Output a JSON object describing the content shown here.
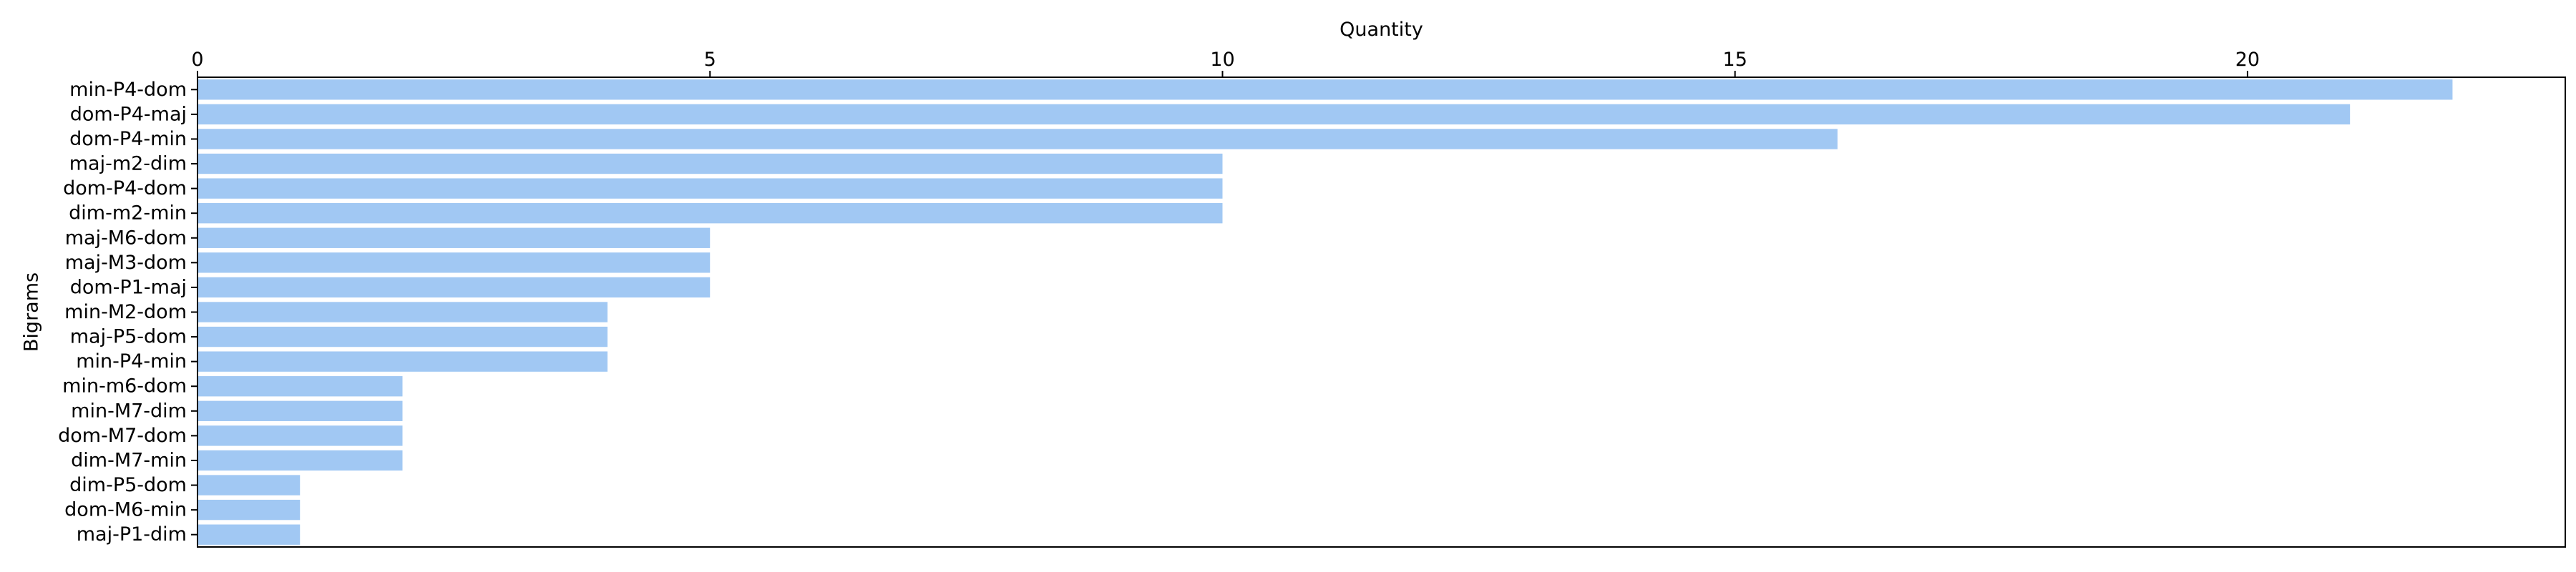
{
  "chart_data": {
    "type": "bar",
    "orientation": "horizontal",
    "title": "",
    "xlabel": "Quantity",
    "ylabel": "Bigrams",
    "x_axis_position": "top",
    "xlim": [
      0,
      23.1
    ],
    "xticks": [
      0,
      5,
      10,
      15,
      20
    ],
    "grid": false,
    "legend": "none",
    "bar_color": "#a1c8f3",
    "categories": [
      "min-P4-dom",
      "dom-P4-maj",
      "dom-P4-min",
      "maj-m2-dim",
      "dom-P4-dom",
      "dim-m2-min",
      "maj-M6-dom",
      "maj-M3-dom",
      "dom-P1-maj",
      "min-M2-dom",
      "maj-P5-dom",
      "min-P4-min",
      "min-m6-dom",
      "min-M7-dim",
      "dom-M7-dom",
      "dim-M7-min",
      "dim-P5-dom",
      "dom-M6-min",
      "maj-P1-dim"
    ],
    "values": [
      22,
      21,
      16,
      10,
      10,
      10,
      5,
      5,
      5,
      4,
      4,
      4,
      2,
      2,
      2,
      2,
      1,
      1,
      1
    ]
  }
}
